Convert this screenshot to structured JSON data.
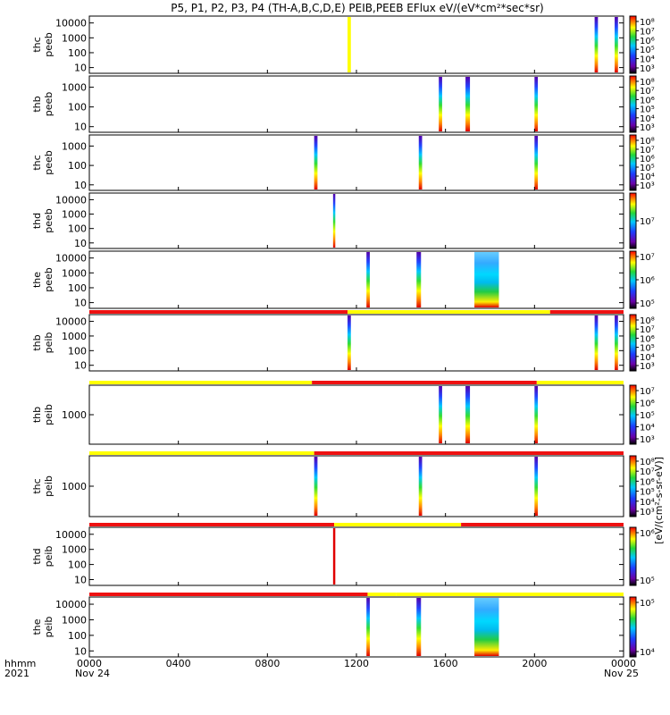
{
  "chart_data": {
    "type": "heatmap",
    "title": "P5, P1, P2, P3, P4 (TH-A,B,C,D,E) PEIB,PEEB EFlux eV/(eV*cm²*sec*sr)",
    "x_axis": {
      "ticks": [
        "0000",
        "0400",
        "0800",
        "1200",
        "1600",
        "2000",
        "0000"
      ],
      "date_labels": [
        "Nov 24",
        "Nov 25"
      ],
      "corner_labels": [
        "hhmm",
        "2021"
      ],
      "range_hours": [
        0,
        24
      ]
    },
    "colorbar_label": "[eV/(cm²-s-sr-eV)]",
    "mode_colors": {
      "red": "#ee1111",
      "yellow": "#ffff00"
    },
    "panels": [
      {
        "id": "thc-peeb",
        "label": [
          "thc",
          "peeb"
        ],
        "yticks": [
          "10000",
          "1000",
          "100",
          "10"
        ],
        "cbar_ticks": [
          "10⁸",
          "10⁷",
          "10⁶",
          "10⁵",
          "10⁴",
          "10³"
        ],
        "bursts": [
          {
            "start": 11.6,
            "end": 11.75,
            "style": "yellow"
          },
          {
            "start": 22.7,
            "end": 22.85,
            "style": "spectrum"
          },
          {
            "start": 23.6,
            "end": 23.75,
            "style": "spectrum"
          }
        ]
      },
      {
        "id": "thb-peeb",
        "label": [
          "thb",
          "peeb"
        ],
        "yticks": [
          "1000",
          "100",
          "10"
        ],
        "cbar_ticks": [
          "10⁸",
          "10⁷",
          "10⁶",
          "10⁵",
          "10⁴",
          "10³"
        ],
        "bursts": [
          {
            "start": 15.7,
            "end": 15.85,
            "style": "spectrum"
          },
          {
            "start": 16.9,
            "end": 17.1,
            "style": "spectrum"
          },
          {
            "start": 20.0,
            "end": 20.15,
            "style": "spectrum"
          }
        ]
      },
      {
        "id": "thc-peeb-2",
        "label": [
          "thc",
          "peeb"
        ],
        "yticks": [
          "1000",
          "100",
          "10"
        ],
        "cbar_ticks": [
          "10⁸",
          "10⁷",
          "10⁶",
          "10⁵",
          "10⁴",
          "10³"
        ],
        "bursts": [
          {
            "start": 10.1,
            "end": 10.25,
            "style": "spectrum"
          },
          {
            "start": 14.8,
            "end": 14.95,
            "style": "spectrum"
          },
          {
            "start": 20.0,
            "end": 20.15,
            "style": "spectrum"
          }
        ]
      },
      {
        "id": "thd-peeb",
        "label": [
          "thd",
          "peeb"
        ],
        "yticks": [
          "10000",
          "1000",
          "100",
          "10"
        ],
        "cbar_ticks": [
          "10⁷"
        ],
        "bursts": [
          {
            "start": 10.95,
            "end": 11.05,
            "style": "spectrum"
          }
        ]
      },
      {
        "id": "the-peeb",
        "label": [
          "the",
          "peeb"
        ],
        "yticks": [
          "10000",
          "1000",
          "100",
          "10"
        ],
        "cbar_ticks": [
          "10⁷",
          "10⁶",
          "10⁵"
        ],
        "bursts": [
          {
            "start": 12.45,
            "end": 12.6,
            "style": "spectrum"
          },
          {
            "start": 14.7,
            "end": 14.9,
            "style": "spectrum"
          },
          {
            "start": 17.3,
            "end": 18.4,
            "style": "spectrum"
          }
        ]
      },
      {
        "id": "thb-peib",
        "label": [
          "thb",
          "peib"
        ],
        "yticks": [
          "10000",
          "1000",
          "100",
          "10"
        ],
        "cbar_ticks": [
          "10⁸",
          "10⁷",
          "10⁶",
          "10⁵",
          "10⁴",
          "10³"
        ],
        "bar": [
          {
            "start": 0,
            "end": 11.6,
            "color": "red"
          },
          {
            "start": 11.6,
            "end": 20.7,
            "color": "yellow"
          },
          {
            "start": 20.7,
            "end": 24,
            "color": "red"
          }
        ],
        "bursts": [
          {
            "start": 11.6,
            "end": 11.75,
            "style": "spectrum"
          },
          {
            "start": 22.7,
            "end": 22.85,
            "style": "spectrum"
          },
          {
            "start": 23.6,
            "end": 23.75,
            "style": "spectrum"
          }
        ]
      },
      {
        "id": "thb-peib-2",
        "label": [
          "thb",
          "peib"
        ],
        "yticks": [
          "1000"
        ],
        "cbar_ticks": [
          "10⁷",
          "10⁶",
          "10⁵",
          "10⁴",
          "10³"
        ],
        "bar": [
          {
            "start": 0,
            "end": 10.0,
            "color": "yellow"
          },
          {
            "start": 10.0,
            "end": 20.1,
            "color": "red"
          },
          {
            "start": 20.1,
            "end": 24,
            "color": "yellow"
          }
        ],
        "bursts": [
          {
            "start": 15.7,
            "end": 15.85,
            "style": "spectrum"
          },
          {
            "start": 16.9,
            "end": 17.1,
            "style": "spectrum"
          },
          {
            "start": 20.0,
            "end": 20.15,
            "style": "spectrum"
          }
        ]
      },
      {
        "id": "thc-peib",
        "label": [
          "thc",
          "peib"
        ],
        "yticks": [
          "1000"
        ],
        "cbar_ticks": [
          "10⁸",
          "10⁷",
          "10⁶",
          "10⁵",
          "10⁴",
          "10³"
        ],
        "bar": [
          {
            "start": 0,
            "end": 10.1,
            "color": "yellow"
          },
          {
            "start": 10.1,
            "end": 24,
            "color": "red"
          }
        ],
        "bursts": [
          {
            "start": 10.1,
            "end": 10.25,
            "style": "spectrum"
          },
          {
            "start": 14.8,
            "end": 14.95,
            "style": "spectrum"
          },
          {
            "start": 20.0,
            "end": 20.15,
            "style": "spectrum"
          }
        ]
      },
      {
        "id": "thd-peib",
        "label": [
          "thd",
          "peib"
        ],
        "yticks": [
          "10000",
          "1000",
          "100",
          "10"
        ],
        "cbar_ticks": [
          "10⁶",
          "10⁵"
        ],
        "bar": [
          {
            "start": 0,
            "end": 11.0,
            "color": "red"
          },
          {
            "start": 11.0,
            "end": 16.7,
            "color": "yellow"
          },
          {
            "start": 16.7,
            "end": 24,
            "color": "red"
          }
        ],
        "bursts": [
          {
            "start": 10.95,
            "end": 11.05,
            "style": "red"
          }
        ]
      },
      {
        "id": "the-peib",
        "label": [
          "the",
          "peib"
        ],
        "yticks": [
          "10000",
          "1000",
          "100",
          "10"
        ],
        "cbar_ticks": [
          "10⁵",
          "10⁴"
        ],
        "bar": [
          {
            "start": 0,
            "end": 12.5,
            "color": "red"
          },
          {
            "start": 12.5,
            "end": 13.8,
            "color": "yellow"
          },
          {
            "start": 13.8,
            "end": 24,
            "color": "yellow"
          }
        ],
        "bursts": [
          {
            "start": 12.45,
            "end": 12.6,
            "style": "spectrum"
          },
          {
            "start": 14.7,
            "end": 14.9,
            "style": "spectrum"
          },
          {
            "start": 17.3,
            "end": 18.4,
            "style": "spectrum"
          }
        ]
      }
    ]
  }
}
